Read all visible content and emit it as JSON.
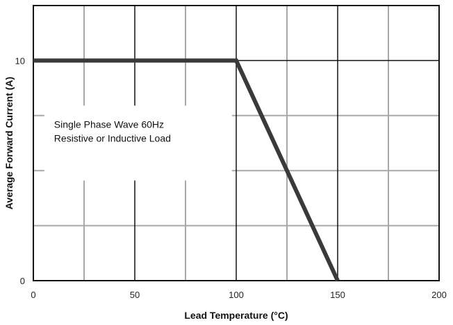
{
  "chart_data": {
    "type": "line",
    "title": "",
    "xlabel": "Lead Temperature (°C)",
    "ylabel": "Average Forward Current (A)",
    "xlim": [
      0,
      200
    ],
    "ylim": [
      0,
      12.5
    ],
    "x_ticks": [
      0,
      50,
      100,
      150,
      200
    ],
    "x_tick_labels": [
      "0",
      "50",
      "100",
      "150",
      "200"
    ],
    "y_ticks": [
      0,
      10
    ],
    "y_tick_labels": [
      "0",
      "10"
    ],
    "grid": true,
    "grid_x_major": [
      0,
      50,
      100,
      150,
      200
    ],
    "grid_x_minor": [
      25,
      75,
      125,
      175
    ],
    "grid_y_major": [
      0,
      10
    ],
    "grid_y_minor": [
      2.5,
      5,
      7.5
    ],
    "series": [
      {
        "x": [
          0,
          100,
          150
        ],
        "y": [
          10,
          10,
          0
        ]
      }
    ],
    "annotations": [
      {
        "lines": [
          "Single Phase Wave 60Hz",
          "Resistive or Inductive Load"
        ],
        "at": [
          15,
          6
        ]
      }
    ],
    "colors": {
      "line": "#3a3a3a",
      "grid_major": "#111111",
      "grid_minor": "#a8a8a8",
      "frame": "#111111"
    }
  }
}
